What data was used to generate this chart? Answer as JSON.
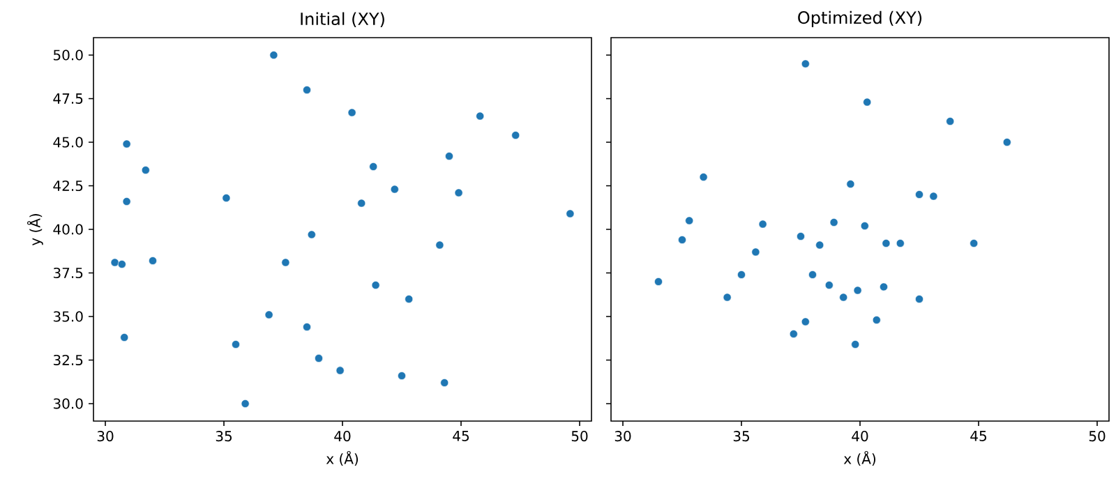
{
  "chart_data": [
    {
      "type": "scatter",
      "title": "Initial (XY)",
      "xlabel": "x (Å)",
      "ylabel": "y (Å)",
      "marker": "circle",
      "grid": false,
      "xlim": [
        29.5,
        50.5
      ],
      "ylim": [
        29,
        51
      ],
      "xticks": [
        30,
        35,
        40,
        45,
        50
      ],
      "yticks": [
        {
          "value": 30,
          "label": "30.0"
        },
        {
          "value": 32.5,
          "label": "32.5"
        },
        {
          "value": 35,
          "label": "35.0"
        },
        {
          "value": 37.5,
          "label": "37.5"
        },
        {
          "value": 40,
          "label": "40.0"
        },
        {
          "value": 42.5,
          "label": "42.5"
        },
        {
          "value": 45,
          "label": "45.0"
        },
        {
          "value": 47.5,
          "label": "47.5"
        },
        {
          "value": 50,
          "label": "50.0"
        }
      ],
      "series": [
        {
          "color": "#1f77b4",
          "x": [
            37.1,
            38.5,
            40.4,
            45.8,
            47.3,
            30.9,
            44.5,
            31.7,
            41.3,
            42.2,
            44.9,
            35.1,
            30.9,
            40.8,
            49.6,
            38.7,
            44.1,
            30.4,
            30.7,
            32.0,
            37.6,
            41.4,
            42.8,
            36.9,
            38.5,
            30.8,
            35.5,
            39.0,
            39.9,
            42.5,
            44.3,
            35.9
          ],
          "values": [
            50.0,
            48.0,
            46.7,
            46.5,
            45.4,
            44.9,
            44.2,
            43.4,
            43.6,
            42.3,
            42.1,
            41.8,
            41.6,
            41.5,
            40.9,
            39.7,
            39.1,
            38.1,
            38.0,
            38.2,
            38.1,
            36.8,
            36.0,
            35.1,
            34.4,
            33.8,
            33.4,
            32.6,
            31.9,
            31.6,
            31.2,
            30.0
          ]
        }
      ]
    },
    {
      "type": "scatter",
      "title": "Optimized (XY)",
      "xlabel": "x (Å)",
      "marker": "circle",
      "grid": false,
      "tick_labels": "x",
      "xlim": [
        29.5,
        50.5
      ],
      "ylim": [
        29,
        51
      ],
      "xticks": [
        30,
        35,
        40,
        45,
        50
      ],
      "yticks": [
        {
          "value": 30,
          "label": null
        },
        {
          "value": 32.5,
          "label": null
        },
        {
          "value": 35,
          "label": null
        },
        {
          "value": 37.5,
          "label": null
        },
        {
          "value": 40,
          "label": null
        },
        {
          "value": 42.5,
          "label": null
        },
        {
          "value": 45,
          "label": null
        },
        {
          "value": 47.5,
          "label": null
        },
        {
          "value": 50,
          "label": null
        }
      ],
      "series": [
        {
          "color": "#1f77b4",
          "x": [
            37.7,
            40.3,
            43.8,
            46.2,
            33.4,
            39.6,
            42.5,
            43.1,
            32.8,
            35.9,
            38.9,
            40.2,
            32.5,
            37.5,
            38.3,
            41.1,
            41.7,
            44.8,
            35.6,
            31.5,
            35.0,
            38.0,
            38.7,
            39.9,
            41.0,
            34.4,
            39.3,
            42.5,
            37.7,
            40.7,
            37.2,
            39.8
          ],
          "values": [
            49.5,
            47.3,
            46.2,
            45.0,
            43.0,
            42.6,
            42.0,
            41.9,
            40.5,
            40.3,
            40.4,
            40.2,
            39.4,
            39.6,
            39.1,
            39.2,
            39.2,
            39.2,
            38.7,
            37.0,
            37.4,
            37.4,
            36.8,
            36.5,
            36.7,
            36.1,
            36.1,
            36.0,
            34.7,
            34.8,
            34.0,
            33.4
          ]
        }
      ]
    }
  ]
}
